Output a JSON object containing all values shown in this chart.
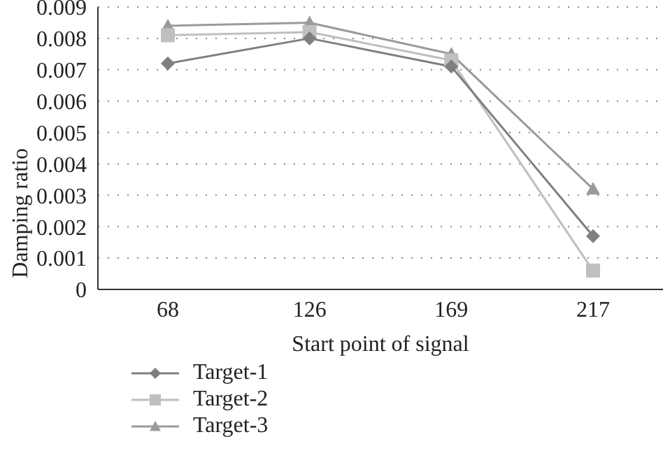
{
  "chart_data": {
    "type": "line",
    "xlabel": "Start point of signal",
    "ylabel": "Damping ratio",
    "categories": [
      "68",
      "126",
      "169",
      "217"
    ],
    "series": [
      {
        "name": "Target-1",
        "color": "#7f7f7f",
        "marker": "diamond",
        "values": [
          0.0072,
          0.008,
          0.0071,
          0.0017
        ]
      },
      {
        "name": "Target-2",
        "color": "#bfbfbf",
        "marker": "square",
        "values": [
          0.0081,
          0.0082,
          0.0073,
          0.0006
        ]
      },
      {
        "name": "Target-3",
        "color": "#9a9a9a",
        "marker": "triangle",
        "values": [
          0.0084,
          0.0085,
          0.0075,
          0.0032
        ]
      }
    ],
    "ylim": [
      0,
      0.009
    ],
    "yticks": [
      0,
      0.001,
      0.002,
      0.003,
      0.004,
      0.005,
      0.006,
      0.007,
      0.008,
      0.009
    ],
    "grid": "y",
    "legend": "bottom left"
  }
}
